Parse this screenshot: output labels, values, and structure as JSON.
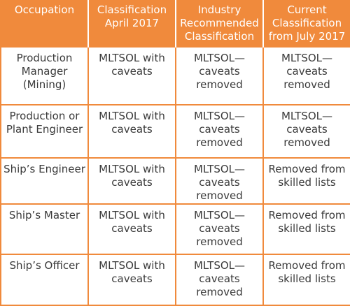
{
  "table": {
    "headers": [
      "Occupation",
      "Classification April 2017",
      "Industry Recommended Classification",
      "Current Classification from July 2017"
    ],
    "rows": [
      [
        "Production Manager (Mining)",
        "MLTSOL with caveats",
        "MLTSOL—caveats removed",
        "MLTSOL—caveats removed"
      ],
      [
        "Production or Plant Engineer",
        "MLTSOL with caveats",
        "MLTSOL—caveats removed",
        "MLTSOL—caveats removed"
      ],
      [
        "Ship’s Engineer",
        "MLTSOL with caveats",
        "MLTSOL—caveats removed",
        "Removed from skilled lists"
      ],
      [
        "Ship’s Master",
        "MLTSOL with caveats",
        "MLTSOL—caveats removed",
        "Removed from skilled lists"
      ],
      [
        "Ship’s Officer",
        "MLTSOL with caveats",
        "MLTSOL—caveats removed",
        "Removed from skilled lists"
      ]
    ]
  },
  "colors": {
    "accent": "#f08a3c",
    "header_text": "#ffffff",
    "body_text": "#3a3a3a"
  }
}
